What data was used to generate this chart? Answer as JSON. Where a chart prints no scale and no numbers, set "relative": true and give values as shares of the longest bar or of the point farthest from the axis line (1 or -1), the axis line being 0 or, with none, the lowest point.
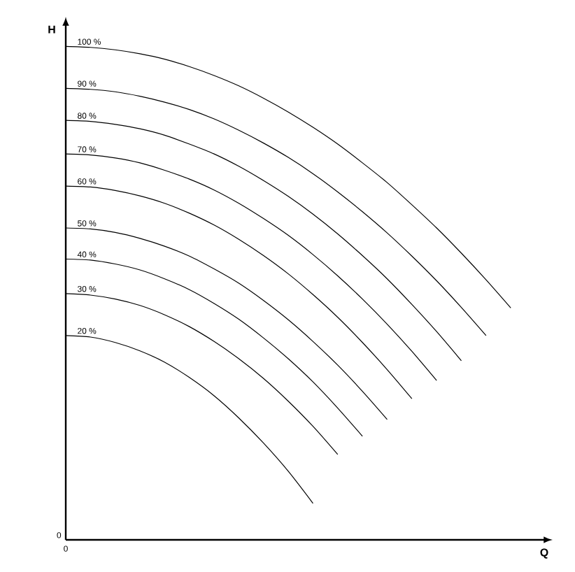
{
  "chart_data": {
    "type": "line",
    "relative": true,
    "xlabel": "Q",
    "ylabel": "H",
    "annotations": [
      "0",
      "0"
    ],
    "marker": "none",
    "line_style": "solid",
    "legend": false,
    "categories": [
      null,
      null,
      null,
      null,
      null,
      null,
      null,
      null,
      null,
      null,
      null,
      null,
      null,
      null,
      null,
      null,
      null,
      null,
      null
    ],
    "series": [
      {
        "name": "100 %",
        "color": "#000000",
        "values": [
          1,
          0.998,
          0.993,
          0.985,
          0.974,
          0.959,
          0.941,
          0.92,
          0.895,
          0.867,
          0.836,
          0.802,
          0.764,
          0.724,
          0.679,
          0.632,
          0.581,
          0.527,
          0.47
        ]
      },
      {
        "name": "90 %",
        "color": "#000000",
        "values": [
          0.915,
          0.913,
          0.908,
          0.899,
          0.887,
          0.872,
          0.853,
          0.83,
          0.804,
          0.775,
          0.742,
          0.705,
          0.665,
          0.622,
          0.575,
          0.525,
          0.471,
          0.414,
          null
        ]
      },
      {
        "name": "80 %",
        "color": "#000000",
        "values": [
          0.85,
          0.848,
          0.842,
          0.833,
          0.82,
          0.802,
          0.782,
          0.757,
          0.728,
          0.696,
          0.66,
          0.62,
          0.576,
          0.529,
          0.477,
          0.422,
          0.363,
          null,
          null
        ]
      },
      {
        "name": "70 %",
        "color": "#000000",
        "values": [
          0.782,
          0.78,
          0.774,
          0.764,
          0.749,
          0.731,
          0.709,
          0.682,
          0.651,
          0.617,
          0.578,
          0.535,
          0.488,
          0.437,
          0.382,
          0.323,
          null,
          null,
          null
        ]
      },
      {
        "name": "60 %",
        "color": "#000000",
        "values": [
          0.717,
          0.715,
          0.708,
          0.697,
          0.682,
          0.662,
          0.638,
          0.609,
          0.576,
          0.539,
          0.497,
          0.451,
          0.4,
          0.345,
          0.286,
          null,
          null,
          null,
          null
        ]
      },
      {
        "name": "50 %",
        "color": "#000000",
        "values": [
          0.632,
          0.63,
          0.623,
          0.611,
          0.595,
          0.575,
          0.549,
          0.52,
          0.485,
          0.446,
          0.402,
          0.354,
          0.301,
          0.244,
          null,
          null,
          null,
          null,
          null
        ]
      },
      {
        "name": "40 %",
        "color": "#000000",
        "values": [
          0.569,
          0.567,
          0.559,
          0.547,
          0.529,
          0.507,
          0.479,
          0.447,
          0.409,
          0.367,
          0.32,
          0.267,
          0.21,
          null,
          null,
          null,
          null,
          null,
          null
        ]
      },
      {
        "name": "30 %",
        "color": "#000000",
        "values": [
          0.499,
          0.496,
          0.488,
          0.475,
          0.456,
          0.432,
          0.402,
          0.367,
          0.327,
          0.281,
          0.23,
          0.173,
          null,
          null,
          null,
          null,
          null,
          null,
          null
        ]
      },
      {
        "name": "20 %",
        "color": "#000000",
        "values": [
          0.414,
          0.411,
          0.4,
          0.383,
          0.36,
          0.329,
          0.292,
          0.247,
          0.196,
          0.139,
          0.074,
          null,
          null,
          null,
          null,
          null,
          null,
          null,
          null
        ]
      }
    ]
  }
}
